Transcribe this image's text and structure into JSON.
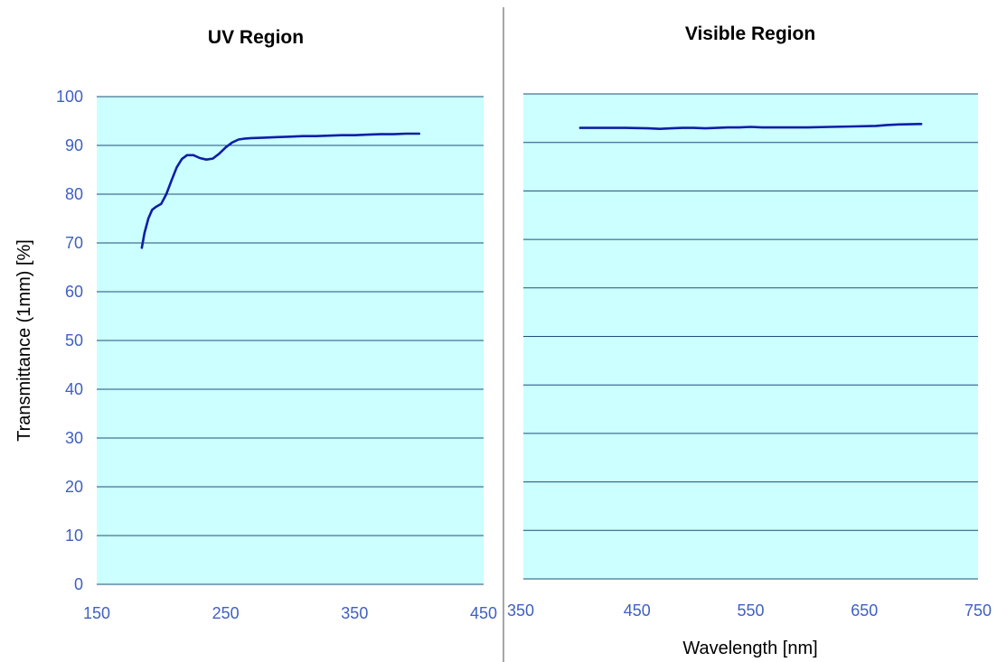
{
  "chart_data": [
    {
      "type": "line",
      "title": "UV Region",
      "ylabel": "Transmittance (1mm) [%]",
      "xlabel": "",
      "xlim": [
        150,
        450
      ],
      "ylim": [
        0,
        100
      ],
      "x_ticks": [
        "150",
        "250",
        "350",
        "450"
      ],
      "y_ticks": [
        "0",
        "10",
        "20",
        "30",
        "40",
        "50",
        "60",
        "70",
        "80",
        "90",
        "100"
      ],
      "grid": true,
      "plot_background": "#ccffff",
      "line_color": "#0d1ea6",
      "series": [
        {
          "x": [
            185,
            187,
            190,
            193,
            196,
            200,
            204,
            208,
            212,
            216,
            220,
            225,
            230,
            235,
            240,
            245,
            250,
            255,
            260,
            265,
            270,
            280,
            290,
            300,
            310,
            320,
            330,
            340,
            350,
            360,
            370,
            380,
            390,
            400
          ],
          "y": [
            69,
            72,
            75,
            76.8,
            77.4,
            78,
            80,
            82.8,
            85.5,
            87.2,
            88,
            88,
            87.4,
            87.1,
            87.3,
            88.3,
            89.6,
            90.6,
            91.2,
            91.4,
            91.5,
            91.6,
            91.7,
            91.8,
            91.9,
            91.9,
            92,
            92.1,
            92.1,
            92.2,
            92.3,
            92.3,
            92.4,
            92.4
          ]
        }
      ]
    },
    {
      "type": "line",
      "title": "Visible Region",
      "xlabel": "Wavelength [nm]",
      "ylabel": "",
      "xlim": [
        350,
        750
      ],
      "ylim": [
        0,
        100
      ],
      "x_ticks": [
        "350",
        "450",
        "550",
        "650",
        "750"
      ],
      "grid": true,
      "plot_background": "#ccffff",
      "line_color": "#0d1ea6",
      "series": [
        {
          "x": [
            400,
            420,
            440,
            460,
            470,
            480,
            490,
            500,
            510,
            520,
            530,
            540,
            550,
            560,
            580,
            600,
            620,
            640,
            660,
            670,
            680,
            700
          ],
          "y": [
            93,
            93,
            93,
            92.9,
            92.8,
            92.9,
            93,
            93,
            92.9,
            93,
            93.1,
            93.1,
            93.2,
            93.1,
            93.1,
            93.1,
            93.2,
            93.3,
            93.4,
            93.6,
            93.7,
            93.8
          ]
        }
      ]
    }
  ]
}
